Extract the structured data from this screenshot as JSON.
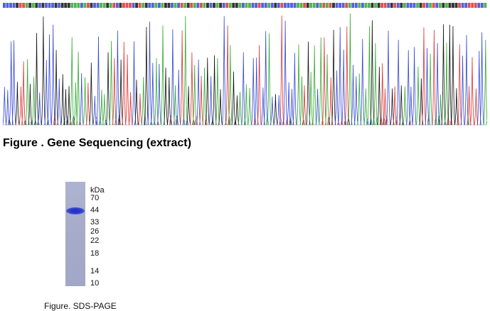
{
  "sequencing": {
    "caption": "Figure . Gene Sequencing (extract)",
    "colors": {
      "A": "#2faa2f",
      "C": "#3347d6",
      "G": "#111111",
      "T": "#e03030"
    },
    "base_count": 150
  },
  "sds_page": {
    "unit": "kDa",
    "markers": [
      "70",
      "44",
      "33",
      "26",
      "22",
      "18",
      "14",
      "10"
    ],
    "band_kda": 44,
    "caption": "Figure. SDS-PAGE"
  }
}
